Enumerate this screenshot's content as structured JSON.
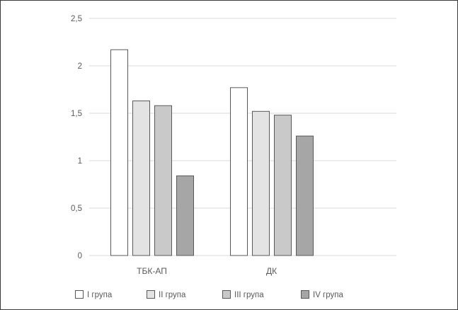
{
  "chart_data": {
    "type": "bar",
    "categories": [
      "ТБК-АП",
      "ДК"
    ],
    "series": [
      {
        "name": "I група",
        "values": [
          2.17,
          1.77
        ],
        "color": "#ffffff"
      },
      {
        "name": "II група",
        "values": [
          1.63,
          1.52
        ],
        "color": "#e3e3e3"
      },
      {
        "name": "III група",
        "values": [
          1.58,
          1.48
        ],
        "color": "#c9c9c9"
      },
      {
        "name": "IV група",
        "values": [
          0.84,
          1.26
        ],
        "color": "#a6a6a6"
      }
    ],
    "yticks": [
      "0",
      "0,5",
      "1",
      "1,5",
      "2",
      "2,5"
    ],
    "ylim": [
      0,
      2.5
    ],
    "title": "",
    "xlabel": "",
    "ylabel": "",
    "grid": true,
    "legend": "bottom",
    "bar_edge_color": "#595959",
    "grid_color": "#d9d9d9"
  }
}
